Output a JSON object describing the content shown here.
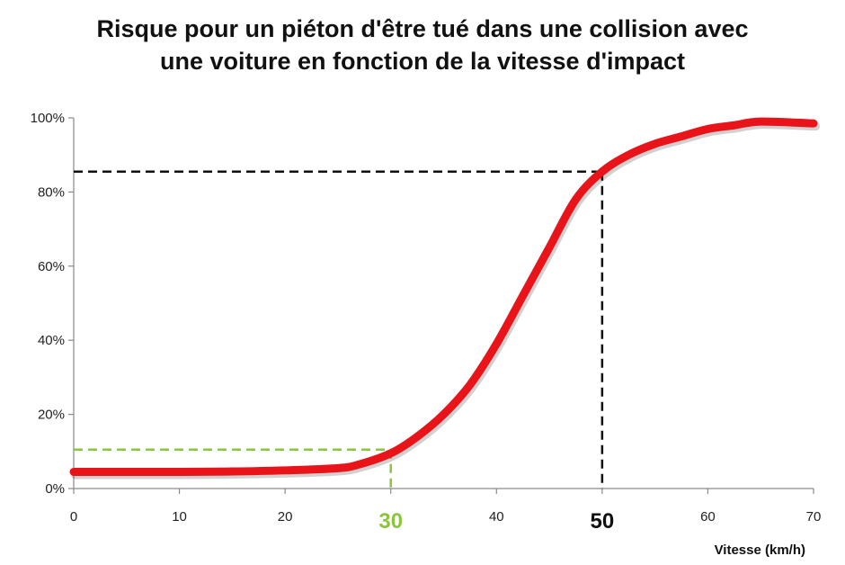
{
  "chart_data": {
    "type": "line",
    "title_lines": [
      "Risque pour un piéton d'être tué dans une collision avec",
      "une voiture en fonction de la vitesse d'impact"
    ],
    "xlabel": "Vitesse (km/h)",
    "ylabel": "",
    "xlim": [
      0,
      70
    ],
    "ylim": [
      0,
      1
    ],
    "x_ticks": [
      0,
      10,
      20,
      30,
      40,
      50,
      60,
      70
    ],
    "x_tick_labels": [
      "0",
      "10",
      "20",
      "",
      "40",
      "",
      "60",
      "70"
    ],
    "y_ticks": [
      0,
      0.2,
      0.4,
      0.6,
      0.8,
      1.0
    ],
    "y_tick_labels": [
      "0%",
      "20%",
      "40%",
      "60%",
      "80%",
      "100%"
    ],
    "grid": false,
    "series": [
      {
        "color": "#e8141a",
        "x": [
          0,
          5,
          10,
          15,
          20,
          25,
          27,
          30,
          32.5,
          35,
          37.5,
          40,
          42.5,
          45,
          47.5,
          50,
          52.5,
          55,
          57.5,
          60,
          62.5,
          65,
          70
        ],
        "y": [
          0.045,
          0.045,
          0.045,
          0.046,
          0.049,
          0.055,
          0.065,
          0.095,
          0.14,
          0.2,
          0.28,
          0.39,
          0.52,
          0.65,
          0.78,
          0.855,
          0.9,
          0.93,
          0.95,
          0.97,
          0.98,
          0.99,
          0.985
        ]
      }
    ],
    "highlights": [
      {
        "x": 30,
        "y": 0.105,
        "label": "30",
        "color": "#8cc63f"
      },
      {
        "x": 50,
        "y": 0.855,
        "label": "50",
        "color": "#111111"
      }
    ]
  }
}
